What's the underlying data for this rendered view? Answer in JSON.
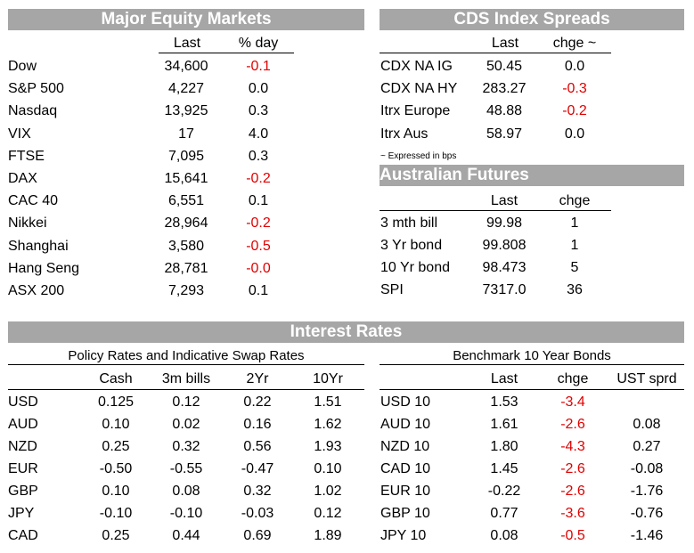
{
  "equity": {
    "title": "Major Equity Markets",
    "headers": [
      "Last",
      "% day"
    ],
    "rows": [
      {
        "name": "Dow",
        "last": "34,600",
        "chg": "-0.1",
        "neg": true
      },
      {
        "name": "S&P 500",
        "last": "4,227",
        "chg": "0.0",
        "neg": false
      },
      {
        "name": "Nasdaq",
        "last": "13,925",
        "chg": "0.3",
        "neg": false
      },
      {
        "name": "VIX",
        "last": "17",
        "chg": "4.0",
        "neg": false
      },
      {
        "name": "FTSE",
        "last": "7,095",
        "chg": "0.3",
        "neg": false
      },
      {
        "name": "DAX",
        "last": "15,641",
        "chg": "-0.2",
        "neg": true
      },
      {
        "name": "CAC 40",
        "last": "6,551",
        "chg": "0.1",
        "neg": false
      },
      {
        "name": "Nikkei",
        "last": "28,964",
        "chg": "-0.2",
        "neg": true
      },
      {
        "name": "Shanghai",
        "last": "3,580",
        "chg": "-0.5",
        "neg": true
      },
      {
        "name": "Hang Seng",
        "last": "28,781",
        "chg": "-0.0",
        "neg": true
      },
      {
        "name": "ASX 200",
        "last": "7,293",
        "chg": "0.1",
        "neg": false
      }
    ]
  },
  "cds": {
    "title": "CDS Index Spreads",
    "headers": [
      "Last",
      "chge ~"
    ],
    "rows": [
      {
        "name": "CDX NA IG",
        "last": "50.45",
        "chg": "0.0",
        "neg": false
      },
      {
        "name": "CDX NA HY",
        "last": "283.27",
        "chg": "-0.3",
        "neg": true
      },
      {
        "name": "Itrx Europe",
        "last": "48.88",
        "chg": "-0.2",
        "neg": true
      },
      {
        "name": "Itrx Aus",
        "last": "58.97",
        "chg": "0.0",
        "neg": false
      }
    ],
    "note": "~ Expressed in bps"
  },
  "futures": {
    "title": "Australian Futures",
    "headers": [
      "Last",
      "chge"
    ],
    "rows": [
      {
        "name": "3 mth bill",
        "last": "99.98",
        "chg": "1"
      },
      {
        "name": "3 Yr bond",
        "last": "99.808",
        "chg": "1"
      },
      {
        "name": "10 Yr bond",
        "last": "98.473",
        "chg": "5"
      },
      {
        "name": "SPI",
        "last": "7317.0",
        "chg": "36"
      }
    ]
  },
  "rates": {
    "title": "Interest Rates",
    "policy": {
      "subtitle": "Policy Rates and Indicative Swap Rates",
      "headers": [
        "Cash",
        "3m bills",
        "2Yr",
        "10Yr"
      ],
      "rows": [
        {
          "ccy": "USD",
          "vals": [
            "0.125",
            "0.12",
            "0.22",
            "1.51"
          ]
        },
        {
          "ccy": "AUD",
          "vals": [
            "0.10",
            "0.02",
            "0.16",
            "1.62"
          ]
        },
        {
          "ccy": "NZD",
          "vals": [
            "0.25",
            "0.32",
            "0.56",
            "1.93"
          ]
        },
        {
          "ccy": "EUR",
          "vals": [
            "-0.50",
            "-0.55",
            "-0.47",
            "0.10"
          ]
        },
        {
          "ccy": "GBP",
          "vals": [
            "0.10",
            "0.08",
            "0.32",
            "1.02"
          ]
        },
        {
          "ccy": "JPY",
          "vals": [
            "-0.10",
            "-0.10",
            "-0.03",
            "0.12"
          ]
        },
        {
          "ccy": "CAD",
          "vals": [
            "0.25",
            "0.44",
            "0.69",
            "1.89"
          ]
        }
      ]
    },
    "bonds": {
      "subtitle": "Benchmark 10 Year Bonds",
      "headers": [
        "Last",
        "chge",
        "UST sprd"
      ],
      "rows": [
        {
          "name": "USD 10",
          "last": "1.53",
          "chg": "-3.4",
          "sprd": ""
        },
        {
          "name": "AUD 10",
          "last": "1.61",
          "chg": "-2.6",
          "sprd": "0.08"
        },
        {
          "name": "NZD 10",
          "last": "1.80",
          "chg": "-4.3",
          "sprd": "0.27"
        },
        {
          "name": "CAD 10",
          "last": "1.45",
          "chg": "-2.6",
          "sprd": "-0.08"
        },
        {
          "name": "EUR 10",
          "last": "-0.22",
          "chg": "-2.6",
          "sprd": "-1.76"
        },
        {
          "name": "GBP 10",
          "last": "0.77",
          "chg": "-3.6",
          "sprd": "-0.76"
        },
        {
          "name": "JPY 10",
          "last": "0.08",
          "chg": "-0.5",
          "sprd": "-1.46"
        }
      ]
    }
  }
}
